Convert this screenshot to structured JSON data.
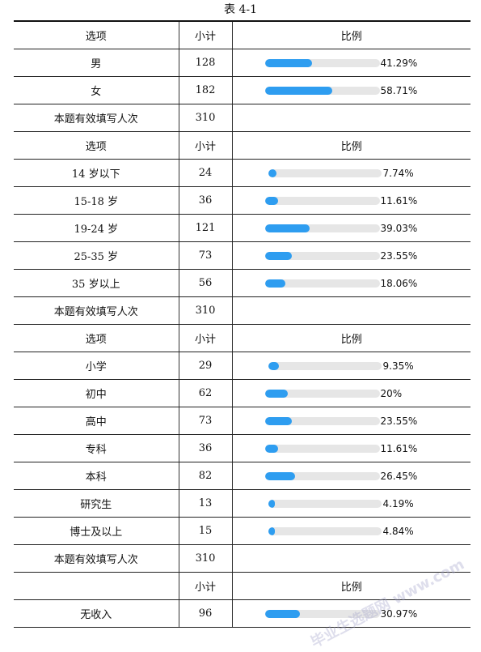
{
  "caption": "表 4-1",
  "header": {
    "option": "选项",
    "count": "小计",
    "ratio": "比例"
  },
  "sections": [
    {
      "show_option_header": true,
      "rows": [
        {
          "label": "男",
          "count": "128",
          "pct": "41.29%",
          "ratio": 0.4129
        },
        {
          "label": "女",
          "count": "182",
          "pct": "58.71%",
          "ratio": 0.5871
        }
      ],
      "total": {
        "label": "本题有效填写人次",
        "count": "310"
      }
    },
    {
      "show_option_header": true,
      "rows": [
        {
          "label": "14 岁以下",
          "count": "24",
          "pct": "7.74%",
          "ratio": 0.0774
        },
        {
          "label": "15-18 岁",
          "count": "36",
          "pct": "11.61%",
          "ratio": 0.1161
        },
        {
          "label": "19-24 岁",
          "count": "121",
          "pct": "39.03%",
          "ratio": 0.3903
        },
        {
          "label": "25-35 岁",
          "count": "73",
          "pct": "23.55%",
          "ratio": 0.2355
        },
        {
          "label": "35 岁以上",
          "count": "56",
          "pct": "18.06%",
          "ratio": 0.1806
        }
      ],
      "total": {
        "label": "本题有效填写人次",
        "count": "310"
      }
    },
    {
      "show_option_header": true,
      "rows": [
        {
          "label": "小学",
          "count": "29",
          "pct": "9.35%",
          "ratio": 0.0935
        },
        {
          "label": "初中",
          "count": "62",
          "pct": "20%",
          "ratio": 0.2
        },
        {
          "label": "高中",
          "count": "73",
          "pct": "23.55%",
          "ratio": 0.2355
        },
        {
          "label": "专科",
          "count": "36",
          "pct": "11.61%",
          "ratio": 0.1161
        },
        {
          "label": "本科",
          "count": "82",
          "pct": "26.45%",
          "ratio": 0.2645
        },
        {
          "label": "研究生",
          "count": "13",
          "pct": "4.19%",
          "ratio": 0.0419
        },
        {
          "label": "博士及以上",
          "count": "15",
          "pct": "4.84%",
          "ratio": 0.0484
        }
      ],
      "total": {
        "label": "本题有效填写人次",
        "count": "310"
      }
    },
    {
      "show_option_header": false,
      "rows": [
        {
          "label": "无收入",
          "count": "96",
          "pct": "30.97%",
          "ratio": 0.3097
        }
      ]
    }
  ],
  "watermark": "毕业生选题网 www.com"
}
